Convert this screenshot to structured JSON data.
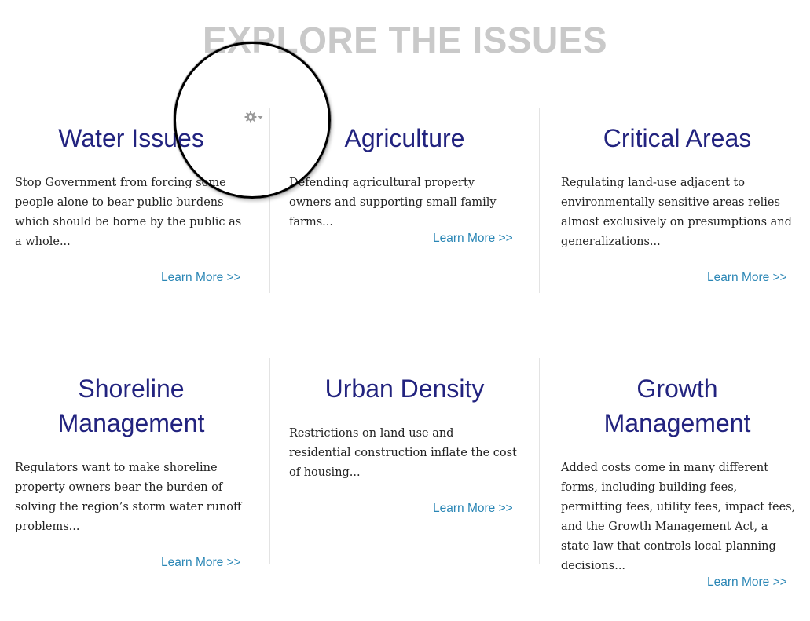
{
  "page": {
    "title": "EXPLORE THE ISSUES"
  },
  "cards": [
    {
      "title": "Water Issues",
      "description": "Stop Government from forcing some people alone to bear public burdens which should be borne by the public as a whole...",
      "link": "Learn More >>"
    },
    {
      "title": "Agriculture",
      "description": "Defending agricultural property owners and supporting small family farms...",
      "link": "Learn More >>"
    },
    {
      "title": "Critical Areas",
      "description": "Regulating land-use adjacent to environmentally sensitive areas relies almost exclusively on presumptions and generalizations...",
      "link": "Learn More >>"
    },
    {
      "title": "Shoreline Management",
      "description": "Regulators want to make shoreline property owners bear the burden of solving the region’s storm water runoff problems...",
      "link": "Learn More >>"
    },
    {
      "title": "Urban Density",
      "description": "Restrictions on land use and residential construction inflate the cost of housing...",
      "link": "Learn More >>"
    },
    {
      "title": "Growth Management",
      "description": "Added costs come in many different forms, including building fees, permitting fees, utility fees, impact fees, and the Growth Management Act, a state law that controls local planning decisions...",
      "link": "Learn More >>"
    }
  ],
  "icons": {
    "settings": "gear-icon"
  },
  "colors": {
    "title": "#c9c9c9",
    "heading": "#22237f",
    "link": "#2a86b5",
    "divider": "#e3e3e3"
  }
}
